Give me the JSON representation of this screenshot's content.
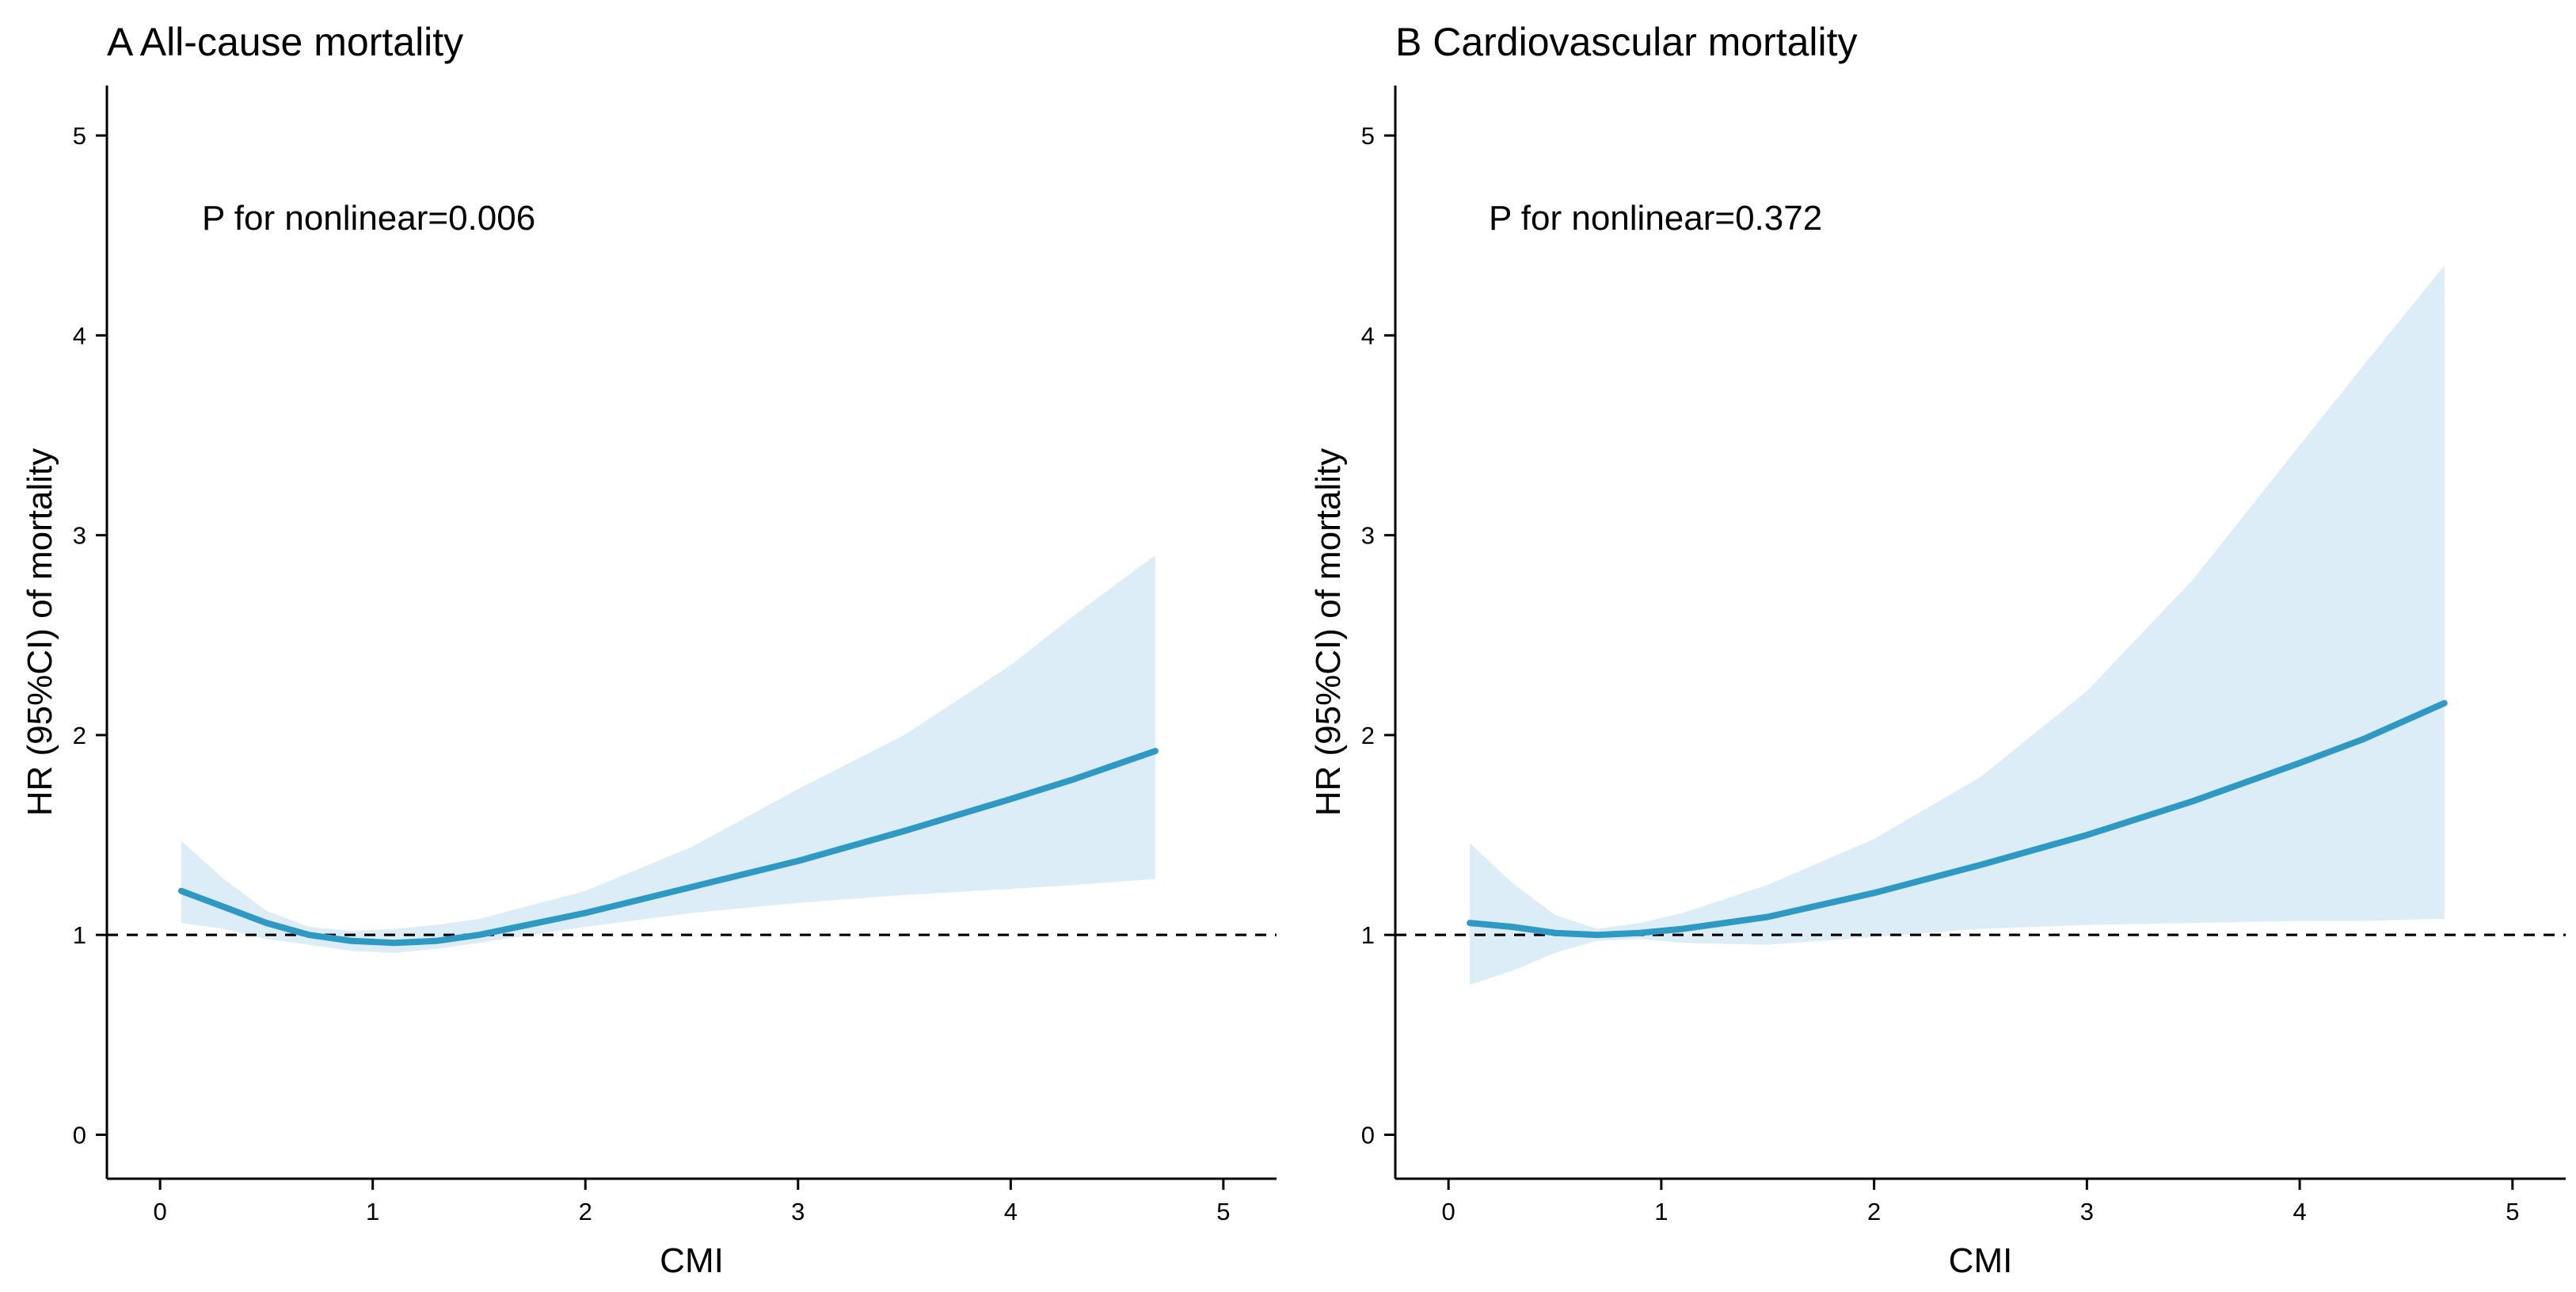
{
  "chart_data": [
    {
      "type": "line",
      "title": "A All-cause mortality",
      "xlabel": "CMI",
      "ylabel": "HR (95%CI) of mortality",
      "xlim": [
        -0.25,
        5.25
      ],
      "ylim": [
        -0.22,
        5.25
      ],
      "xticks": [
        0,
        1,
        2,
        3,
        4,
        5
      ],
      "yticks": [
        0,
        1,
        2,
        3,
        4,
        5
      ],
      "reference_line_y": 1,
      "annotation": "P for nonlinear=0.006",
      "colors": {
        "line": "#2e9ac4",
        "band": "#dcedf8"
      },
      "series": [
        {
          "name": "HR",
          "x": [
            0.1,
            0.3,
            0.5,
            0.7,
            0.9,
            1.1,
            1.3,
            1.5,
            2.0,
            2.5,
            3.0,
            3.5,
            4.0,
            4.3,
            4.68
          ],
          "y": [
            1.22,
            1.14,
            1.06,
            1.0,
            0.97,
            0.96,
            0.97,
            1.0,
            1.11,
            1.24,
            1.37,
            1.52,
            1.68,
            1.78,
            1.92
          ],
          "lower": [
            1.06,
            1.03,
            0.98,
            0.95,
            0.92,
            0.91,
            0.93,
            0.96,
            1.04,
            1.11,
            1.16,
            1.2,
            1.23,
            1.25,
            1.28
          ],
          "upper": [
            1.47,
            1.28,
            1.12,
            1.04,
            1.02,
            1.03,
            1.05,
            1.08,
            1.22,
            1.44,
            1.73,
            2.0,
            2.35,
            2.6,
            2.9
          ]
        }
      ]
    },
    {
      "type": "line",
      "title": "B Cardiovascular mortality",
      "xlabel": "CMI",
      "ylabel": "HR (95%CI) of mortality",
      "xlim": [
        -0.25,
        5.25
      ],
      "ylim": [
        -0.22,
        5.25
      ],
      "xticks": [
        0,
        1,
        2,
        3,
        4,
        5
      ],
      "yticks": [
        0,
        1,
        2,
        3,
        4,
        5
      ],
      "reference_line_y": 1,
      "annotation": "P for nonlinear=0.372",
      "colors": {
        "line": "#2e9ac4",
        "band": "#dcedf8"
      },
      "series": [
        {
          "name": "HR",
          "x": [
            0.1,
            0.3,
            0.5,
            0.7,
            0.9,
            1.1,
            1.5,
            2.0,
            2.5,
            3.0,
            3.5,
            4.0,
            4.3,
            4.68
          ],
          "y": [
            1.06,
            1.04,
            1.01,
            1.0,
            1.01,
            1.03,
            1.09,
            1.21,
            1.35,
            1.5,
            1.67,
            1.86,
            1.98,
            2.16
          ],
          "lower": [
            0.75,
            0.82,
            0.91,
            0.97,
            0.98,
            0.96,
            0.95,
            0.99,
            1.03,
            1.05,
            1.06,
            1.07,
            1.07,
            1.08
          ],
          "upper": [
            1.46,
            1.26,
            1.1,
            1.03,
            1.06,
            1.11,
            1.25,
            1.48,
            1.79,
            2.22,
            2.78,
            3.45,
            3.85,
            4.35
          ]
        }
      ]
    }
  ]
}
